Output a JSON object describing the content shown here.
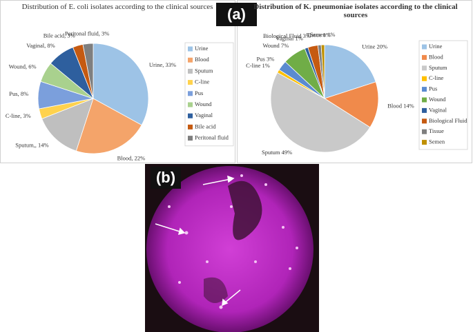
{
  "panel_labels": [
    "(a)",
    "(b)"
  ],
  "chart_data": [
    {
      "type": "pie",
      "title": "Distribution of E. coli isolates according to the clinical sources",
      "categories": [
        "Urine",
        "Blood",
        "Sputum",
        "C-line",
        "Pus",
        "Wound",
        "Vaginal",
        "Bile acid",
        "Peritonal fluid"
      ],
      "values": [
        33,
        22,
        14,
        3,
        8,
        6,
        8,
        3,
        3
      ],
      "value_labels": [
        "Urine, 33%",
        "Blood, 22%",
        "Sputum,, 14%",
        "C-line, 3%",
        "Pus, 8%",
        "Wound, 6%",
        "Vaginal, 8%",
        "Bile acid, 3%",
        "Peritonal fluid, 3%"
      ],
      "colors": [
        "#9dc3e6",
        "#f4a46a",
        "#bfbfbf",
        "#ffd24d",
        "#7b9fdc",
        "#a9d18e",
        "#2e5f9e",
        "#c55a11",
        "#7f7f7f"
      ],
      "legend": "right"
    },
    {
      "type": "pie",
      "title": "Distribution of K. pneumoniae isolates according to the clinical sources",
      "categories": [
        "Urine",
        "Blood",
        "Sputum",
        "C-line",
        "Pus",
        "Wound",
        "Vaginal",
        "Biological Fluid",
        "Tissue",
        "Semen"
      ],
      "values": [
        20,
        14,
        49,
        1,
        3,
        7,
        1,
        3,
        1,
        1
      ],
      "value_labels": [
        "Urine 20%",
        "Blood 14%",
        "Sputum 49%",
        "C-line 1%",
        "Pus 3%",
        "Wound 7%",
        "Vaginal 1%",
        "Biological Fluid 3%",
        "Tissue 1%",
        "Semen 1%"
      ],
      "colors": [
        "#9dc3e6",
        "#f08a4b",
        "#c9c9c9",
        "#ffc000",
        "#5b8bd0",
        "#70ad47",
        "#2e5f9e",
        "#c55a11",
        "#7f7f7f",
        "#bf9000"
      ],
      "legend": "right"
    }
  ]
}
